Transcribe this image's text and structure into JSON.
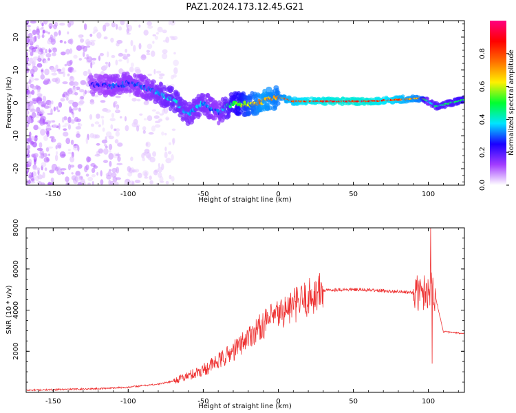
{
  "figure": {
    "title": "PAZ1.2024.173.12.45.G21"
  },
  "chart_data": [
    {
      "type": "heatmap",
      "xlabel": "Height of straight line (km)",
      "ylabel": "Frequency (Hz)",
      "xlim": [
        -168,
        124
      ],
      "ylim": [
        -25,
        25
      ],
      "xticks": [
        -150,
        -100,
        -50,
        0,
        50,
        100
      ],
      "yticks": [
        -20,
        -10,
        0,
        10,
        20
      ],
      "colorbar": {
        "label": "Normalized spectral amplitude",
        "range": [
          0,
          1
        ],
        "ticks": [
          0.0,
          0.2,
          0.4,
          0.6,
          0.8
        ],
        "colors": [
          "#ffffff",
          "#a23cff",
          "#1a00ff",
          "#00e5ff",
          "#00ff30",
          "#fff000",
          "#ff7000",
          "#ff0000",
          "#ff0080"
        ]
      },
      "ridge": {
        "x": [
          -120,
          -110,
          -100,
          -90,
          -80,
          -70,
          -60,
          -50,
          -40,
          -30,
          -20,
          -10,
          0,
          10,
          20,
          40,
          60,
          80,
          95,
          100,
          105,
          115,
          124
        ],
        "freq": [
          5.5,
          5,
          6,
          5,
          3,
          1,
          -3.5,
          0,
          -3,
          0,
          -0.5,
          0.5,
          2,
          0.5,
          0.5,
          0.5,
          0.5,
          1,
          1.5,
          0.5,
          -1,
          0,
          1
        ],
        "amplitude": [
          0.25,
          0.3,
          0.3,
          0.3,
          0.35,
          0.4,
          0.35,
          0.35,
          0.3,
          0.5,
          0.65,
          0.75,
          0.7,
          0.8,
          0.85,
          0.88,
          0.88,
          0.8,
          0.7,
          0.35,
          0.45,
          0.45,
          0.5
        ]
      }
    },
    {
      "type": "line",
      "xlabel": "Height of straight line (km)",
      "ylabel": "SNR (10 * v/v)",
      "xlim": [
        -168,
        124
      ],
      "ylim": [
        0,
        8000
      ],
      "xticks": [
        -150,
        -100,
        -50,
        0,
        50,
        100
      ],
      "yticks": [
        2000,
        4000,
        6000,
        8000
      ],
      "color": "#ee3333",
      "trend": {
        "x": [
          -168,
          -120,
          -100,
          -80,
          -70,
          -60,
          -50,
          -40,
          -30,
          -20,
          -10,
          0,
          10,
          20,
          30,
          40,
          60,
          80,
          95,
          100,
          103,
          110,
          124
        ],
        "snr": [
          100,
          180,
          250,
          400,
          550,
          800,
          1100,
          1500,
          2000,
          2700,
          3300,
          3800,
          4200,
          4600,
          4950,
          5000,
          4980,
          4900,
          4800,
          5000,
          5200,
          2950,
          2850
        ]
      },
      "peak": {
        "x": 101.5,
        "snr": 8000
      }
    }
  ]
}
